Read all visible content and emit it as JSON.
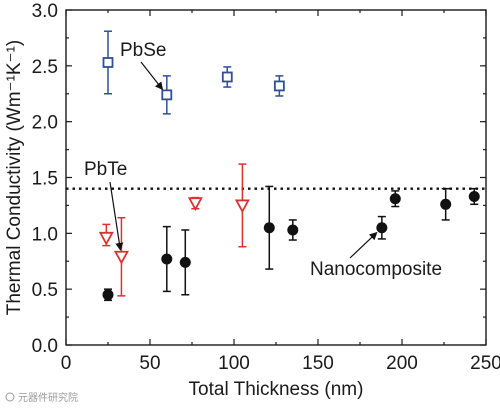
{
  "chart_data": {
    "type": "scatter",
    "xlabel": "Total Thickness (nm)",
    "ylabel": "Thermal Conductivity (Wm⁻¹K⁻¹)",
    "xlim": [
      0,
      250
    ],
    "ylim": [
      0.0,
      3.0
    ],
    "xticks": [
      "0",
      "50",
      "100",
      "150",
      "200",
      "250"
    ],
    "yticks": [
      "0.0",
      "0.5",
      "1.0",
      "1.5",
      "2.0",
      "2.5",
      "3.0"
    ],
    "grid": false,
    "series": [
      {
        "name": "PbSe",
        "marker": "open-square",
        "color": "#2f4f96",
        "points": [
          {
            "x": 25,
            "y": 2.53,
            "err_lo": 0.28,
            "err_hi": 0.28
          },
          {
            "x": 60,
            "y": 2.24,
            "err_lo": 0.17,
            "err_hi": 0.17
          },
          {
            "x": 96,
            "y": 2.4,
            "err_lo": 0.09,
            "err_hi": 0.09
          },
          {
            "x": 127,
            "y": 2.32,
            "err_lo": 0.09,
            "err_hi": 0.09
          }
        ]
      },
      {
        "name": "PbTe",
        "marker": "open-triangle-down",
        "color": "#d93232",
        "points": [
          {
            "x": 24,
            "y": 0.96,
            "err_lo": 0.07,
            "err_hi": 0.12
          },
          {
            "x": 33,
            "y": 0.79,
            "err_lo": 0.35,
            "err_hi": 0.35
          },
          {
            "x": 77,
            "y": 1.27,
            "err_lo": 0.05,
            "err_hi": 0.05
          },
          {
            "x": 105,
            "y": 1.25,
            "err_lo": 0.37,
            "err_hi": 0.37
          }
        ]
      },
      {
        "name": "Nanocomposite",
        "marker": "filled-circle",
        "color": "#111111",
        "points": [
          {
            "x": 25,
            "y": 0.45,
            "err_lo": 0.05,
            "err_hi": 0.05
          },
          {
            "x": 60,
            "y": 0.77,
            "err_lo": 0.29,
            "err_hi": 0.29
          },
          {
            "x": 71,
            "y": 0.74,
            "err_lo": 0.29,
            "err_hi": 0.29
          },
          {
            "x": 121,
            "y": 1.05,
            "err_lo": 0.37,
            "err_hi": 0.37
          },
          {
            "x": 135,
            "y": 1.03,
            "err_lo": 0.09,
            "err_hi": 0.09
          },
          {
            "x": 188,
            "y": 1.05,
            "err_lo": 0.1,
            "err_hi": 0.1
          },
          {
            "x": 196,
            "y": 1.31,
            "err_lo": 0.07,
            "err_hi": 0.07
          },
          {
            "x": 226,
            "y": 1.26,
            "err_lo": 0.14,
            "err_hi": 0.14
          },
          {
            "x": 243,
            "y": 1.33,
            "err_lo": 0.07,
            "err_hi": 0.07
          }
        ]
      }
    ],
    "reference_line": {
      "y": 1.4,
      "style": "dotted"
    },
    "annotations": [
      {
        "text": "PbSe",
        "target_series": 0,
        "target_point": 1
      },
      {
        "text": "PbTe",
        "target_series": 1,
        "target_point": 1
      },
      {
        "text": "Nanocomposite",
        "target_series": 2,
        "target_point": 5
      }
    ]
  },
  "watermark": "元器件研究院"
}
